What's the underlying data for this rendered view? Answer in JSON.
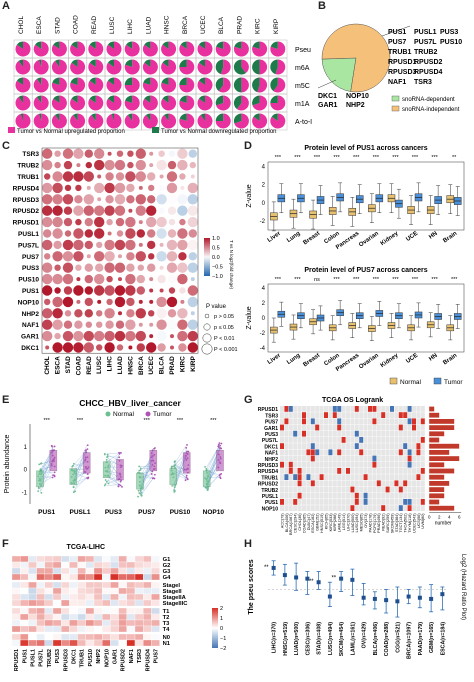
{
  "panels": {
    "A": "A",
    "B": "B",
    "C": "C",
    "D": "D",
    "E": "E",
    "F": "F",
    "G": "G",
    "H": "H"
  },
  "colors": {
    "up": "#e8309e",
    "down": "#1e7a4a",
    "heat_high": "#b2182b",
    "heat_low": "#2166ac",
    "normal": "#e8c170",
    "tumor": "#4a90d9",
    "snorna_dependent": "#a8e6a1",
    "snorna_independent": "#f4c07a",
    "g_red": "#d73027",
    "g_blue": "#4575b4"
  },
  "panelA": {
    "cancers": [
      "CHOL",
      "ESCA",
      "STAD",
      "COAD",
      "READ",
      "LUSC",
      "LIHC",
      "LUAD",
      "HNSC",
      "BRCA",
      "UCEC",
      "BLCA",
      "PRAD",
      "KIRC",
      "KIRP"
    ],
    "rows": [
      "Pseu",
      "m6A",
      "m5C",
      "m1A",
      "A-to-I"
    ],
    "up_fraction": [
      [
        0.85,
        0.85,
        0.85,
        0.85,
        0.85,
        0.85,
        0.85,
        0.85,
        0.85,
        0.85,
        0.85,
        0.8,
        0.8,
        0.8,
        0.8
      ],
      [
        0.9,
        0.95,
        0.9,
        0.85,
        0.85,
        0.85,
        0.8,
        0.85,
        0.85,
        0.75,
        0.85,
        0.55,
        0.4,
        0.5,
        0.55
      ],
      [
        0.85,
        0.9,
        0.8,
        0.8,
        0.85,
        0.85,
        0.75,
        0.8,
        0.8,
        0.75,
        0.85,
        0.6,
        0.5,
        0.55,
        0.6
      ],
      [
        0.9,
        0.9,
        0.85,
        0.85,
        0.85,
        0.85,
        0.8,
        0.85,
        0.85,
        0.8,
        0.85,
        0.7,
        0.6,
        0.7,
        0.75
      ],
      [
        0.95,
        0.95,
        0.9,
        0.9,
        0.9,
        0.95,
        0.9,
        0.9,
        0.9,
        0.8,
        0.9,
        0.75,
        0.7,
        0.85,
        0.85
      ]
    ],
    "legend_up": "Tumor vs Normal upregulated proportion",
    "legend_down": "Tumor vs Normal downregulated proportion"
  },
  "panelB": {
    "labels_right": [
      "PUS1",
      "PUSL1",
      "PUS3",
      "PUS7",
      "PUS7L",
      "PUS10",
      "TRUB1",
      "TRUB2",
      "RPUSD1",
      "RPUSD2",
      "RPUSD3",
      "RPUSD4",
      "NAF1",
      "TSR3"
    ],
    "labels_left": [
      "DKC1",
      "NOP10",
      "GAR1",
      "NHP2"
    ],
    "legend_dep": "snoRNA-dependent",
    "legend_indep": "snoRNA-independent",
    "fractions": {
      "dependent": 0.22,
      "independent": 0.78
    }
  },
  "panelC": {
    "genes": [
      "TSR3",
      "TRUB2",
      "TRUB1",
      "RPUSD4",
      "RPUSD3",
      "RPUSD2",
      "RPUSD1",
      "PUSL1",
      "PUS7L",
      "PUS7",
      "PUS3",
      "PUS10",
      "PUS1",
      "NOP10",
      "NHP2",
      "NAF1",
      "GAR1",
      "DKC1"
    ],
    "cancers": [
      "CHOL",
      "ESCA",
      "STAD",
      "COAD",
      "READ",
      "LUSC",
      "LIHC",
      "LUAD",
      "HNSC",
      "BRCA",
      "UCEC",
      "BLCA",
      "PRAD",
      "KIRC",
      "KIRP"
    ],
    "colorbar_title": "T vs N log2(fold change)",
    "colorbar_ticks": [
      "1.0",
      "0.5",
      "0.0",
      "−0.5",
      "−1.0"
    ],
    "pvalue_title": "P value",
    "pvalue_items": [
      "p > 0.05",
      "p ≤ 0.05",
      "P < 0.01",
      "P < 0.001"
    ]
  },
  "panelD": {
    "title1": "Protein level of PUS1 across cancers",
    "title2": "Protein level of PUS7 across cancers",
    "ylabel": "Z-value",
    "cancers": [
      "Liver",
      "Lung",
      "Breast",
      "Colon",
      "Pancreas",
      "Ovarian",
      "Kidney",
      "UCE",
      "HN",
      "Brain"
    ],
    "sig1": [
      "***",
      "***",
      "***",
      "***",
      "***",
      "***",
      "***",
      "***",
      "***",
      "**"
    ],
    "sig2": [
      "***",
      "***",
      "ns",
      "***",
      "***",
      "***",
      "***",
      "***",
      "***",
      "***"
    ],
    "yticks1": [
      "4",
      "2",
      "0",
      "-2"
    ],
    "yticks2": [
      "4",
      "2",
      "0",
      "-2",
      "-4"
    ],
    "legend_normal": "Normal",
    "legend_tumor": "Tumor",
    "pus1_normal": [
      -1.5,
      -1.2,
      -1.3,
      -0.9,
      -1.0,
      -0.6,
      0.5,
      -0.8,
      -0.8,
      0.4
    ],
    "pus1_tumor": [
      0.5,
      0.5,
      0.3,
      0.6,
      0.4,
      0.5,
      -0.1,
      0.6,
      0.3,
      0.2
    ],
    "pus7_normal": [
      -1.6,
      -1.2,
      -0.5,
      -1.3,
      -1.0,
      -1.4,
      -1.0,
      -1.3,
      -0.9,
      -1.3
    ],
    "pus7_tumor": [
      0.5,
      0.3,
      0.0,
      0.7,
      0.3,
      0.6,
      0.3,
      0.4,
      0.2,
      0.2
    ]
  },
  "panelE": {
    "title": "CHCC_HBV_liver_cancer",
    "legend_normal": "Normal",
    "legend_tumor": "Tumor",
    "ylabel": "Protein abundance",
    "genes": [
      "PUS1",
      "PUSL1",
      "PUS3",
      "PUS7",
      "PUS10",
      "NOP10"
    ],
    "sig": [
      "***",
      "***",
      "",
      "***",
      "***",
      "***"
    ],
    "yticks": [
      "1",
      "0",
      "-1"
    ],
    "normal_median": [
      -0.4,
      -0.3,
      0.0,
      -0.5,
      -0.3,
      -0.4
    ],
    "tumor_median": [
      0.4,
      0.3,
      0.0,
      0.4,
      0.3,
      0.4
    ]
  },
  "panelG": {
    "title": "TCGA OS Logrank",
    "genes": [
      "RPUSD1",
      "TSR3",
      "PUS7",
      "GAR1",
      "PUS3",
      "PUS7L",
      "DKC1",
      "NAF1",
      "NHP2",
      "RPUSD3",
      "RPUSD4",
      "TRUB1",
      "RPUSD2",
      "TRUB2",
      "PUSL1",
      "PUS1",
      "NOP10"
    ],
    "bar_axis_label": "number",
    "bar_ticks": [
      "0",
      "2",
      "4",
      "6"
    ],
    "bar_values": [
      1,
      2,
      5,
      5,
      3,
      2,
      6,
      4,
      6,
      3,
      5,
      3,
      4,
      3,
      3,
      2,
      5
    ],
    "cancers": [
      "ACC(79)",
      "BLCA(406)",
      "BRCA(1087)",
      "CESC(294)",
      "CHOL(36)",
      "COAD(285)",
      "DLBC(47)",
      "ESCA(182)",
      "GBM(152)",
      "HNSC(519)",
      "KICH(65)",
      "KIRC(533)",
      "KIRP(288)",
      "LAML(149)",
      "LGG(514)",
      "LIHC(370)",
      "LUAD(500)",
      "LUSC(494)",
      "MESO(85)",
      "OV(373)",
      "PAAD(178)",
      "PCPG(179)",
      "PRAD(496)",
      "READ(92)",
      "SARC(259)",
      "SKCM(459)",
      "STAD(384)",
      "TGCT(134)",
      "THCA(502)",
      "THYM(118)",
      "UCEC(543)",
      "UCS(56)",
      "UVM(80)"
    ]
  },
  "panelF": {
    "title": "TCGA-LIHC",
    "rows": [
      "G1",
      "G2",
      "G3",
      "G4",
      "StageI",
      "StageII",
      "StageIIA",
      "StageIIIC",
      "T1",
      "T2",
      "T3",
      "T4",
      "N0",
      "N1"
    ],
    "genes": [
      "RPUSD1",
      "PUS1",
      "PUSL1",
      "PUS7L",
      "TRUB2",
      "PUS3",
      "RPUSD3",
      "DKC1",
      "TRUB1",
      "PUS10",
      "NHP2",
      "NOP10",
      "GAR1",
      "RPUSD2",
      "NAF1",
      "TSR3",
      "RPUSD4",
      "PUS7"
    ],
    "colorbar_ticks": [
      "2",
      "1",
      "0",
      "−1",
      "−2"
    ]
  },
  "panelH": {
    "ylabel": "The pseu scores",
    "ylabel_right": "Log2 (Hazard Ratio Plot)",
    "cancers": [
      "LIHC(n=370)",
      "HNSC(n=519)",
      "LUAD(n=500)",
      "CESC(n=306)",
      "STAD(n=408)",
      "LUSC(n=494)",
      "SKCM(n=454)",
      "LAML(n=161)",
      "OV(n=429)",
      "BLCA(n=406)",
      "COAD(n=288)",
      "CGG(n=521)",
      "BRCA(n=1097)",
      "PAAD(n=179)",
      "GBM(n=165)",
      "ESCA(n=184)"
    ],
    "log2hr": [
      0.9,
      0.6,
      0.5,
      0.45,
      0.3,
      -0.3,
      0.45,
      0.4,
      -0.35,
      -0.4,
      -0.45,
      -0.5,
      -0.3,
      -0.35,
      -0.4,
      -0.2
    ],
    "sig": [
      "**",
      "",
      "",
      "",
      "**",
      "",
      "**",
      "",
      "",
      "",
      "",
      "",
      "",
      "",
      "",
      ""
    ]
  }
}
